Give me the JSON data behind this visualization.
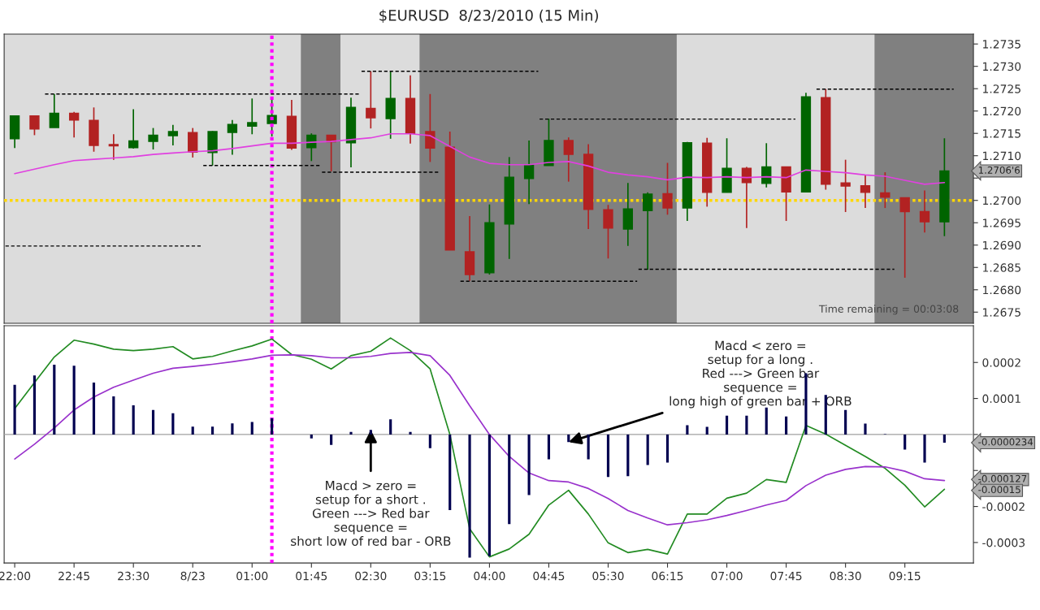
{
  "chart_data": [
    {
      "type": "candlestick",
      "title": "$EURUSD  8/23/2010 (15 Min)",
      "x": [
        "2010-08-22T22:00",
        "2010-08-22T22:15",
        "2010-08-22T22:30",
        "2010-08-22T22:45",
        "2010-08-22T23:00",
        "2010-08-22T23:15",
        "2010-08-22T23:30",
        "2010-08-22T23:45",
        "2010-08-23T00:00",
        "2010-08-23T00:15",
        "2010-08-23T00:30",
        "2010-08-23T00:45",
        "2010-08-23T01:00",
        "2010-08-23T01:15",
        "2010-08-23T01:30",
        "2010-08-23T01:45",
        "2010-08-23T02:00",
        "2010-08-23T02:15",
        "2010-08-23T02:30",
        "2010-08-23T02:45",
        "2010-08-23T03:00",
        "2010-08-23T03:15",
        "2010-08-23T03:30",
        "2010-08-23T03:45",
        "2010-08-23T04:00",
        "2010-08-23T04:15",
        "2010-08-23T04:30",
        "2010-08-23T04:45",
        "2010-08-23T05:00",
        "2010-08-23T05:15",
        "2010-08-23T05:30",
        "2010-08-23T05:45",
        "2010-08-23T06:00",
        "2010-08-23T06:15",
        "2010-08-23T06:30",
        "2010-08-23T06:45",
        "2010-08-23T07:00",
        "2010-08-23T07:15",
        "2010-08-23T07:30",
        "2010-08-23T07:45",
        "2010-08-23T08:00",
        "2010-08-23T08:15",
        "2010-08-23T08:30",
        "2010-08-23T08:45",
        "2010-08-23T09:00",
        "2010-08-23T09:15",
        "2010-08-23T09:30",
        "2010-08-23T09:45"
      ],
      "ohlc": [
        [
          1.27138,
          1.27189,
          1.27117,
          1.27189
        ],
        [
          1.27189,
          1.27189,
          1.27146,
          1.2716
        ],
        [
          1.27163,
          1.27238,
          1.27163,
          1.27195
        ],
        [
          1.27195,
          1.27198,
          1.27141,
          1.2718
        ],
        [
          1.27179,
          1.27208,
          1.27109,
          1.27123
        ],
        [
          1.27125,
          1.27148,
          1.27091,
          1.27122
        ],
        [
          1.27118,
          1.27204,
          1.27116,
          1.27133
        ],
        [
          1.27132,
          1.27162,
          1.27114,
          1.27146
        ],
        [
          1.27145,
          1.27169,
          1.27123,
          1.27154
        ],
        [
          1.27152,
          1.27162,
          1.27096,
          1.27108
        ],
        [
          1.27107,
          1.27155,
          1.27078,
          1.27154
        ],
        [
          1.27152,
          1.2718,
          1.27102,
          1.2717
        ],
        [
          1.27166,
          1.27228,
          1.27148,
          1.27174
        ],
        [
          1.27172,
          1.27225,
          1.27143,
          1.2719
        ],
        [
          1.27188,
          1.27225,
          1.27113,
          1.27117
        ],
        [
          1.27118,
          1.2715,
          1.27088,
          1.27146
        ],
        [
          1.27146,
          1.27146,
          1.27065,
          1.27131
        ],
        [
          1.27129,
          1.2723,
          1.27074,
          1.27208
        ],
        [
          1.27206,
          1.27289,
          1.27161,
          1.27185
        ],
        [
          1.27183,
          1.27289,
          1.27138,
          1.27228
        ],
        [
          1.27228,
          1.2728,
          1.27127,
          1.2715
        ],
        [
          1.27154,
          1.27238,
          1.27086,
          1.27117
        ],
        [
          1.27119,
          1.27154,
          1.26889,
          1.26889
        ],
        [
          1.26885,
          1.26965,
          1.2682,
          1.26834
        ],
        [
          1.26838,
          1.26991,
          1.26834,
          1.2695
        ],
        [
          1.26947,
          1.27097,
          1.26869,
          1.27052
        ],
        [
          1.27049,
          1.27134,
          1.26992,
          1.27079
        ],
        [
          1.27078,
          1.27183,
          1.27078,
          1.27134
        ],
        [
          1.27134,
          1.27141,
          1.27042,
          1.27103
        ],
        [
          1.27103,
          1.27126,
          1.26936,
          1.2698
        ],
        [
          1.26979,
          1.2699,
          1.2687,
          1.26938
        ],
        [
          1.26936,
          1.27039,
          1.26898,
          1.26981
        ],
        [
          1.26977,
          1.27018,
          1.26845,
          1.27014
        ],
        [
          1.27015,
          1.27084,
          1.26968,
          1.26983
        ],
        [
          1.26983,
          1.27131,
          1.26954,
          1.27129
        ],
        [
          1.27128,
          1.2714,
          1.26986,
          1.27018
        ],
        [
          1.27018,
          1.27139,
          1.27018,
          1.27072
        ],
        [
          1.27072,
          1.27075,
          1.26938,
          1.2704
        ],
        [
          1.27038,
          1.27128,
          1.27029,
          1.27075
        ],
        [
          1.27075,
          1.27075,
          1.26954,
          1.27019
        ],
        [
          1.27019,
          1.27241,
          1.27018,
          1.27232
        ],
        [
          1.2723,
          1.27249,
          1.27024,
          1.27036
        ],
        [
          1.27039,
          1.27091,
          1.26974,
          1.27032
        ],
        [
          1.27033,
          1.27056,
          1.26983,
          1.27018
        ],
        [
          1.27017,
          1.27063,
          1.26983,
          1.27007
        ],
        [
          1.27006,
          1.27006,
          1.26827,
          1.26975
        ],
        [
          1.26975,
          1.27022,
          1.26928,
          1.26952
        ],
        [
          1.26952,
          1.27139,
          1.2692,
          1.27066
        ]
      ],
      "colors": [
        "#006400",
        "#b22222",
        "#006400",
        "#b22222",
        "#b22222",
        "#b22222",
        "#006400",
        "#006400",
        "#006400",
        "#b22222",
        "#006400",
        "#006400",
        "#006400",
        "#006400",
        "#b22222",
        "#006400",
        "#b22222",
        "#006400",
        "#b22222",
        "#006400",
        "#b22222",
        "#b22222",
        "#b22222",
        "#b22222",
        "#006400",
        "#006400",
        "#006400",
        "#006400",
        "#b22222",
        "#b22222",
        "#b22222",
        "#006400",
        "#006400",
        "#b22222",
        "#006400",
        "#b22222",
        "#006400",
        "#b22222",
        "#006400",
        "#b22222",
        "#006400",
        "#b22222",
        "#b22222",
        "#b22222",
        "#b22222",
        "#b22222",
        "#b22222",
        "#006400"
      ],
      "series": [
        {
          "type": "line",
          "color": "#e040e0",
          "values": [
            1.2706,
            1.2707,
            1.2708,
            1.27089,
            1.27092,
            1.27095,
            1.27098,
            1.27103,
            1.27106,
            1.27109,
            1.27111,
            1.27116,
            1.27122,
            1.27128,
            1.27128,
            1.2713,
            1.27132,
            1.27136,
            1.2714,
            1.27149,
            1.27149,
            1.27145,
            1.27121,
            1.27097,
            1.27083,
            1.2708,
            1.2708,
            1.27085,
            1.27087,
            1.27077,
            1.27063,
            1.27057,
            1.27053,
            1.27046,
            1.27052,
            1.27051,
            1.27053,
            1.27051,
            1.27053,
            1.27051,
            1.27068,
            1.27065,
            1.27062,
            1.27057,
            1.27054,
            1.27045,
            1.27036,
            1.2704
          ]
        },
        {
          "type": "line",
          "color": "#000000",
          "line_style": "dashed",
          "x": [
            "2010-08-22T22:23",
            "2010-08-23T02:22"
          ],
          "values": [
            1.27238,
            1.27238
          ]
        },
        {
          "type": "line",
          "color": "#000000",
          "line_style": "dashed",
          "x": [
            "2010-08-23T00:23",
            "2010-08-23T01:52"
          ],
          "values": [
            1.27078,
            1.27078
          ]
        },
        {
          "type": "line",
          "color": "#000000",
          "line_style": "dashed",
          "x": [
            "2010-08-23T01:53",
            "2010-08-23T03:22"
          ],
          "values": [
            1.27063,
            1.27063
          ]
        },
        {
          "type": "line",
          "color": "#000000",
          "line_style": "dashed",
          "x": [
            "2010-08-22T21:53",
            "2010-08-23T00:22"
          ],
          "values": [
            1.26898,
            1.26898
          ]
        },
        {
          "type": "line",
          "color": "#000000",
          "line_style": "dashed",
          "x": [
            "2010-08-23T02:23",
            "2010-08-23T04:37"
          ],
          "values": [
            1.27289,
            1.27289
          ]
        },
        {
          "type": "line",
          "color": "#000000",
          "line_style": "dashed",
          "x": [
            "2010-08-23T03:38",
            "2010-08-23T05:52"
          ],
          "values": [
            1.26819,
            1.26819
          ]
        },
        {
          "type": "line",
          "color": "#000000",
          "line_style": "dashed",
          "x": [
            "2010-08-23T04:38",
            "2010-08-23T07:52"
          ],
          "values": [
            1.27182,
            1.27182
          ]
        },
        {
          "type": "line",
          "color": "#000000",
          "line_style": "dashed",
          "x": [
            "2010-08-23T05:53",
            "2010-08-23T09:07"
          ],
          "values": [
            1.26846,
            1.26846
          ]
        },
        {
          "type": "line",
          "color": "#000000",
          "line_style": "dashed",
          "x": [
            "2010-08-23T08:08",
            "2010-08-23T09:52"
          ],
          "values": [
            1.27249,
            1.27249
          ]
        }
      ],
      "xlim": [
        "2010-08-22T21:52",
        "2010-08-23T10:07"
      ],
      "ylim": [
        1.26725,
        1.27372
      ],
      "yticks": [
        {
          "value": 1.2675,
          "label": "1.2675"
        },
        {
          "value": 1.268,
          "label": "1.2680"
        },
        {
          "value": 1.2685,
          "label": "1.2685"
        },
        {
          "value": 1.269,
          "label": "1.2690"
        },
        {
          "value": 1.2695,
          "label": "1.2695"
        },
        {
          "value": 1.27,
          "label": "1.2700"
        },
        {
          "value": 1.2705,
          "label": null
        },
        {
          "value": 1.271,
          "label": "1.2710"
        },
        {
          "value": 1.2715,
          "label": "1.2715"
        },
        {
          "value": 1.272,
          "label": "1.2720"
        },
        {
          "value": 1.2725,
          "label": "1.2725"
        },
        {
          "value": 1.273,
          "label": "1.2730"
        },
        {
          "value": 1.2735,
          "label": "1.2735"
        }
      ],
      "tick_labels": "y",
      "ref_lines": [
        {
          "axis": "y",
          "value": 1.27,
          "color": "#ffd700",
          "line_style": "dotted"
        },
        {
          "axis": "x",
          "value": "2010-08-23T01:15",
          "color": "#ff00ff",
          "line_style": "dotted"
        }
      ],
      "bands": [
        {
          "axis": "x",
          "from": "2010-08-23T01:37",
          "to": "2010-08-23T02:07",
          "color": "#808080"
        },
        {
          "axis": "x",
          "from": "2010-08-23T03:07",
          "to": "2010-08-23T06:22",
          "color": "#808080"
        },
        {
          "axis": "x",
          "from": "2010-08-23T08:52",
          "to": "2010-08-23T10:07",
          "color": "#808080"
        }
      ],
      "annotations": [
        "Time remaining = 00:03:08",
        "1.2706'6"
      ]
    },
    {
      "type": "bar",
      "x": [
        "2010-08-22T22:00",
        "2010-08-22T22:15",
        "2010-08-22T22:30",
        "2010-08-22T22:45",
        "2010-08-22T23:00",
        "2010-08-22T23:15",
        "2010-08-22T23:30",
        "2010-08-22T23:45",
        "2010-08-23T00:00",
        "2010-08-23T00:15",
        "2010-08-23T00:30",
        "2010-08-23T00:45",
        "2010-08-23T01:00",
        "2010-08-23T01:15",
        "2010-08-23T01:30",
        "2010-08-23T01:45",
        "2010-08-23T02:00",
        "2010-08-23T02:15",
        "2010-08-23T02:30",
        "2010-08-23T02:45",
        "2010-08-23T03:00",
        "2010-08-23T03:15",
        "2010-08-23T03:30",
        "2010-08-23T03:45",
        "2010-08-23T04:00",
        "2010-08-23T04:15",
        "2010-08-23T04:30",
        "2010-08-23T04:45",
        "2010-08-23T05:00",
        "2010-08-23T05:15",
        "2010-08-23T05:30",
        "2010-08-23T05:45",
        "2010-08-23T06:00",
        "2010-08-23T06:15",
        "2010-08-23T06:30",
        "2010-08-23T06:45",
        "2010-08-23T07:00",
        "2010-08-23T07:15",
        "2010-08-23T07:30",
        "2010-08-23T07:45",
        "2010-08-23T08:00",
        "2010-08-23T08:15",
        "2010-08-23T08:30",
        "2010-08-23T08:45",
        "2010-08-23T09:00",
        "2010-08-23T09:15",
        "2010-08-23T09:30",
        "2010-08-23T09:45"
      ],
      "series": [
        {
          "type": "bar",
          "color": "#000050",
          "values": [
            0.000138,
            0.000164,
            0.000194,
            0.000191,
            0.000144,
            0.000106,
            8.1e-05,
            6.8e-05,
            5.9e-05,
            2.2e-05,
            2.2e-05,
            3.1e-05,
            3.5e-05,
            4.5e-05,
            0,
            -1.1e-05,
            -2.9e-05,
            7e-06,
            1.3e-05,
            4.2e-05,
            7e-06,
            -3.8e-05,
            -0.00021,
            -0.000342,
            -0.000338,
            -0.000249,
            -0.000168,
            -6.9e-05,
            -2.1e-05,
            -6.9e-05,
            -0.000118,
            -0.000116,
            -8.5e-05,
            -7.8e-05,
            2.6e-05,
            2.1e-05,
            5.2e-05,
            5.2e-05,
            7.5e-05,
            5e-05,
            0.00017,
            0.00011,
            6.8e-05,
            3e-05,
            1e-06,
            -4.2e-05,
            -7.8e-05,
            -2.3e-05
          ]
        },
        {
          "type": "line",
          "color": "#228b22",
          "values": [
            7.2e-05,
            0.000144,
            0.000215,
            0.000262,
            0.000251,
            0.000237,
            0.000233,
            0.000237,
            0.000244,
            0.00021,
            0.000217,
            0.000232,
            0.000246,
            0.000265,
            0.000222,
            0.000209,
            0.000182,
            0.000219,
            0.000231,
            0.000268,
            0.000233,
            0.000182,
            0.0,
            -0.000262,
            -0.00034,
            -0.000318,
            -0.000277,
            -0.000196,
            -0.000155,
            -0.000221,
            -0.000301,
            -0.000328,
            -0.000319,
            -0.000332,
            -0.000221,
            -0.000221,
            -0.000177,
            -0.000163,
            -0.000125,
            -0.000133,
            2.5e-05,
            1e-06,
            -3e-05,
            -6.1e-05,
            -9.4e-05,
            -0.000141,
            -0.000201,
            -0.000152
          ]
        },
        {
          "type": "line",
          "color": "#9932cc",
          "values": [
            -6.8e-05,
            -2.7e-05,
            1.8e-05,
            6.8e-05,
            0.000104,
            0.000131,
            0.000151,
            0.00017,
            0.000184,
            0.000189,
            0.000195,
            0.000202,
            0.00021,
            0.00022,
            0.000221,
            0.000219,
            0.000213,
            0.000213,
            0.000217,
            0.000225,
            0.000228,
            0.000219,
            0.000164,
            8e-05,
            0.0,
            -6.1e-05,
            -0.000107,
            -0.000128,
            -0.000132,
            -0.00015,
            -0.000178,
            -0.000211,
            -0.000232,
            -0.000251,
            -0.000245,
            -0.000237,
            -0.000225,
            -0.000211,
            -0.000196,
            -0.000183,
            -0.000142,
            -0.000113,
            -9.7e-05,
            -8.9e-05,
            -9e-05,
            -0.000102,
            -0.000123,
            -0.000128
          ]
        }
      ],
      "xlim": [
        "2010-08-22T21:52",
        "2010-08-23T10:07"
      ],
      "xticks": [
        {
          "value": "2010-08-22T22:00",
          "label": "22:00"
        },
        {
          "value": "2010-08-22T22:45",
          "label": "22:45"
        },
        {
          "value": "2010-08-22T23:30",
          "label": "23:30"
        },
        {
          "value": "2010-08-23T00:15",
          "label": "8/23"
        },
        {
          "value": "2010-08-23T01:00",
          "label": "01:00"
        },
        {
          "value": "2010-08-23T01:45",
          "label": "01:45"
        },
        {
          "value": "2010-08-23T02:30",
          "label": "02:30"
        },
        {
          "value": "2010-08-23T03:15",
          "label": "03:15"
        },
        {
          "value": "2010-08-23T04:00",
          "label": "04:00"
        },
        {
          "value": "2010-08-23T04:45",
          "label": "04:45"
        },
        {
          "value": "2010-08-23T05:30",
          "label": "05:30"
        },
        {
          "value": "2010-08-23T06:15",
          "label": "06:15"
        },
        {
          "value": "2010-08-23T07:00",
          "label": "07:00"
        },
        {
          "value": "2010-08-23T07:45",
          "label": "07:45"
        },
        {
          "value": "2010-08-23T08:30",
          "label": "08:30"
        },
        {
          "value": "2010-08-23T09:15",
          "label": "09:15"
        }
      ],
      "ylim": [
        -0.000357,
        0.000302
      ],
      "yticks": [
        {
          "value": -0.0003,
          "label": "-0.0003"
        },
        {
          "value": -0.0002,
          "label": "-0.0002"
        },
        {
          "value": -0.0001,
          "label": null
        },
        {
          "value": 0,
          "label": null
        },
        {
          "value": 0.0001,
          "label": "0.0001"
        },
        {
          "value": 0.0002,
          "label": "0.0002"
        }
      ],
      "ref_lines": [
        {
          "axis": "y",
          "value": 0,
          "color": "#a0a0a0",
          "line_style": "solid"
        },
        {
          "axis": "x",
          "value": "2010-08-23T01:15",
          "color": "#ff00ff",
          "line_style": "dotted"
        }
      ],
      "annotations": [
        {
          "text": "Macd > zero =\nsetup for a short .\nGreen ---> Red bar\nsequence =\nshort low of red bar - ORB",
          "x": "2010-08-23T02:30",
          "y": 1.3e-05
        },
        {
          "text": "Macd < zero =\nsetup for a long .\nRed ---> Green bar\nsequence =\nlong high of green bar + ORB",
          "x": "2010-08-23T05:00",
          "y": -2.1e-05
        },
        "-0.0000234",
        "-0.000127",
        "-0.00015"
      ]
    }
  ]
}
